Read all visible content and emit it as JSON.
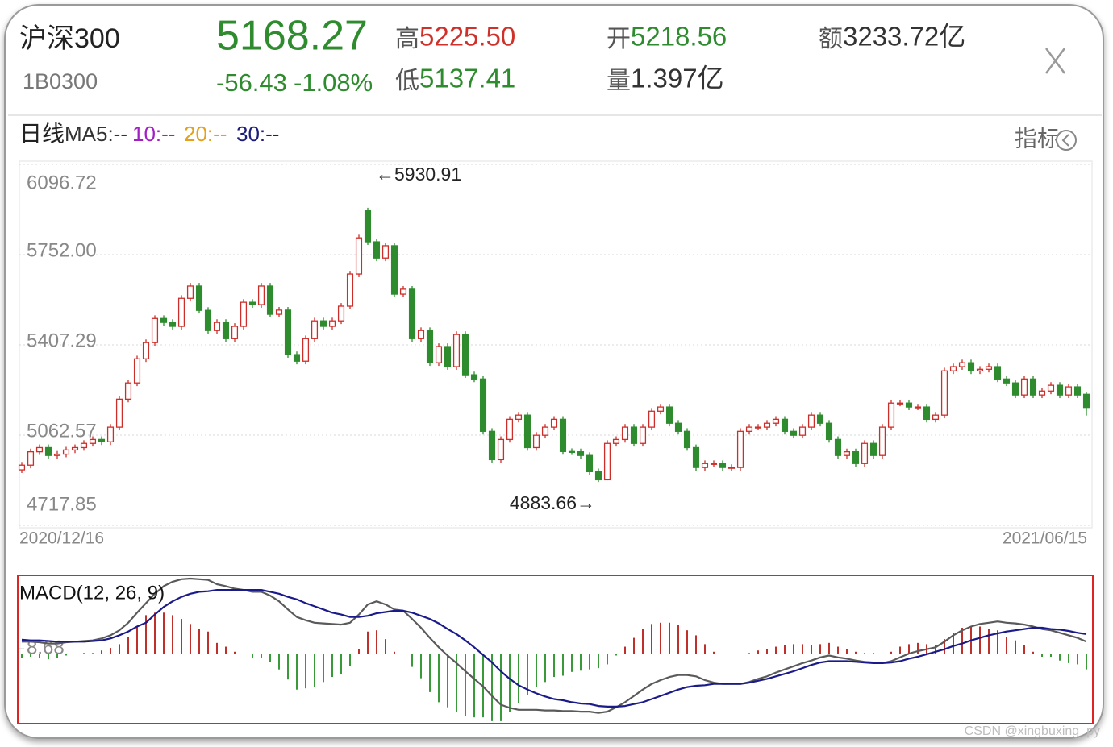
{
  "header": {
    "name": "沪深300",
    "code": "1B0300",
    "price": "5168.27",
    "change": "-56.43",
    "change_pct": "-1.08%",
    "high_label": "高",
    "high": "5225.50",
    "low_label": "低",
    "low": "5137.41",
    "open_label": "开",
    "open": "5218.56",
    "volume_label": "量",
    "volume": "1.397亿",
    "amount_label": "额",
    "amount": "3233.72亿"
  },
  "toolbar": {
    "period": "日线",
    "ma": [
      {
        "text": "MA5:--",
        "color": "#333333"
      },
      {
        "text": "10:--",
        "color": "#a21fc4"
      },
      {
        "text": "20:--",
        "color": "#e3a21a"
      },
      {
        "text": "30:--",
        "color": "#1c1c7a"
      }
    ],
    "indicator": "指标"
  },
  "watermark": "CSDN @xingbuxing_py",
  "chart_data": [
    {
      "type": "candlestick",
      "categories": [
        "2020/12/16",
        null,
        null,
        null,
        null,
        null,
        null,
        null,
        null,
        null,
        null,
        null,
        null,
        null,
        null,
        null,
        null,
        null,
        null,
        null,
        null,
        null,
        null,
        null,
        null,
        null,
        null,
        null,
        null,
        null,
        null,
        null,
        null,
        null,
        null,
        null,
        null,
        null,
        null,
        null,
        null,
        null,
        null,
        null,
        null,
        null,
        null,
        null,
        null,
        null,
        null,
        null,
        null,
        null,
        null,
        null,
        null,
        null,
        null,
        null,
        null,
        null,
        null,
        null,
        null,
        null,
        null,
        null,
        null,
        null,
        null,
        null,
        null,
        null,
        null,
        null,
        null,
        null,
        null,
        null,
        null,
        null,
        null,
        null,
        null,
        null,
        null,
        null,
        null,
        null,
        null,
        null,
        null,
        null,
        null,
        null,
        null,
        null,
        null,
        null,
        null,
        null,
        null,
        null,
        null,
        null,
        null,
        null,
        null,
        null,
        null,
        null,
        null,
        null,
        null,
        null,
        null,
        null,
        null,
        null,
        "2021/06/15"
      ],
      "open": [
        4930,
        4948,
        4999,
        5015,
        4985,
        4990,
        5006,
        5015,
        5031,
        5046,
        5037,
        5093,
        5200,
        5262,
        5354,
        5416,
        5508,
        5493,
        5478,
        5585,
        5632,
        5539,
        5462,
        5493,
        5431,
        5478,
        5570,
        5561,
        5632,
        5524,
        5540,
        5370,
        5345,
        5431,
        5499,
        5478,
        5499,
        5555,
        5678,
        5920,
        5801,
        5739,
        5786,
        5601,
        5620,
        5431,
        5462,
        5339,
        5401,
        5324,
        5447,
        5293,
        5277,
        5077,
        4969,
        5046,
        5123,
        5139,
        5015,
        5062,
        5093,
        5123,
        5000,
        4999,
        4985,
        4923,
        4892,
        5031,
        5046,
        5093,
        5031,
        5093,
        5154,
        5170,
        5108,
        5077,
        5015,
        4939,
        4954,
        4954,
        4939,
        4939,
        5077,
        5093,
        5093,
        5108,
        5123,
        5077,
        5062,
        5093,
        5139,
        5108,
        5046,
        4985,
        4999,
        4954,
        5031,
        4985,
        5093,
        5185,
        5185,
        5170,
        5170,
        5123,
        5139,
        5308,
        5324,
        5339,
        5308,
        5314,
        5324,
        5277,
        5262,
        5216,
        5277,
        5216,
        5231,
        5253,
        5216,
        5247,
        5218.56
      ],
      "high": [
        4960,
        5011,
        5027,
        5027,
        5002,
        5018,
        5027,
        5043,
        5058,
        5058,
        5105,
        5212,
        5274,
        5366,
        5428,
        5520,
        5520,
        5505,
        5597,
        5644,
        5644,
        5551,
        5505,
        5505,
        5490,
        5582,
        5582,
        5644,
        5644,
        5552,
        5552,
        5382,
        5443,
        5511,
        5511,
        5511,
        5567,
        5690,
        5828,
        5930.91,
        5813,
        5798,
        5798,
        5632,
        5632,
        5474,
        5474,
        5413,
        5413,
        5459,
        5459,
        5305,
        5289,
        5089,
        5058,
        5135,
        5151,
        5151,
        5074,
        5105,
        5135,
        5135,
        5012,
        5011,
        4997,
        4935,
        5043,
        5058,
        5105,
        5105,
        5105,
        5166,
        5182,
        5182,
        5120,
        5089,
        5027,
        4966,
        4966,
        4966,
        4951,
        5089,
        5105,
        5105,
        5120,
        5135,
        5135,
        5089,
        5105,
        5151,
        5151,
        5120,
        5058,
        5011,
        5011,
        5043,
        5043,
        5105,
        5197,
        5197,
        5197,
        5182,
        5182,
        5151,
        5320,
        5336,
        5351,
        5351,
        5326,
        5336,
        5336,
        5289,
        5274,
        5289,
        5289,
        5243,
        5265,
        5265,
        5259,
        5259,
        5225.5
      ],
      "low": [
        4918,
        4936,
        4987,
        4973,
        4973,
        4978,
        4994,
        5003,
        5019,
        5025,
        5025,
        5081,
        5188,
        5250,
        5342,
        5404,
        5481,
        5466,
        5466,
        5573,
        5527,
        5450,
        5450,
        5419,
        5419,
        5466,
        5549,
        5549,
        5512,
        5512,
        5358,
        5333,
        5333,
        5419,
        5466,
        5466,
        5487,
        5543,
        5666,
        5789,
        5727,
        5727,
        5589,
        5589,
        5419,
        5419,
        5327,
        5327,
        5312,
        5312,
        5281,
        5265,
        5065,
        4957,
        4957,
        5034,
        5111,
        5003,
        5003,
        5050,
        5081,
        4988,
        4987,
        4973,
        4911,
        4883.66,
        4890,
        5019,
        5034,
        5019,
        5019,
        5081,
        5142,
        5096,
        5065,
        5003,
        4927,
        4927,
        4942,
        4927,
        4927,
        4927,
        5065,
        5081,
        5081,
        5096,
        5065,
        5050,
        5050,
        5081,
        5096,
        5034,
        4973,
        4973,
        4942,
        4942,
        4973,
        4973,
        5081,
        5173,
        5158,
        5158,
        5111,
        5111,
        5127,
        5296,
        5312,
        5296,
        5296,
        5302,
        5265,
        5250,
        5204,
        5204,
        5204,
        5204,
        5219,
        5204,
        5204,
        5204,
        5137.41
      ],
      "close": [
        4948,
        4999,
        5015,
        4985,
        4990,
        5006,
        5015,
        5031,
        5046,
        5037,
        5093,
        5200,
        5262,
        5354,
        5416,
        5508,
        5493,
        5478,
        5585,
        5632,
        5539,
        5462,
        5493,
        5431,
        5478,
        5570,
        5561,
        5632,
        5524,
        5540,
        5370,
        5345,
        5431,
        5499,
        5478,
        5499,
        5555,
        5678,
        5816,
        5801,
        5739,
        5786,
        5601,
        5620,
        5431,
        5462,
        5339,
        5401,
        5324,
        5447,
        5293,
        5277,
        5077,
        4969,
        5046,
        5123,
        5139,
        5015,
        5062,
        5093,
        5123,
        5000,
        4999,
        4985,
        4923,
        4892,
        5031,
        5046,
        5093,
        5031,
        5093,
        5154,
        5170,
        5108,
        5077,
        5015,
        4939,
        4954,
        4954,
        4939,
        4939,
        5077,
        5093,
        5093,
        5108,
        5123,
        5077,
        5062,
        5093,
        5139,
        5108,
        5046,
        4985,
        4999,
        4954,
        5031,
        4985,
        5093,
        5185,
        5185,
        5170,
        5170,
        5123,
        5139,
        5308,
        5324,
        5339,
        5308,
        5314,
        5324,
        5277,
        5262,
        5216,
        5277,
        5216,
        5231,
        5253,
        5216,
        5247,
        5216,
        5168.27
      ],
      "up_color": "#cc2f2a",
      "down_color": "#2e8b2e",
      "ylim": [
        4717.85,
        6096.72
      ],
      "yticks": [
        6096.72,
        {
          "value": 5752,
          "label": "5752.00"
        },
        5407.29,
        5062.57,
        4717.85
      ],
      "grid": true,
      "annotations": [
        "←5930.91",
        "4883.66→"
      ]
    },
    {
      "type": "macd",
      "title": "MACD(12, 26, 9)",
      "ylim": [
        -110,
        120
      ],
      "yticks": [
        8.68
      ],
      "series": [
        {
          "color": "#5a5a5a",
          "values": [
            20,
            20,
            19,
            17,
            17,
            19,
            20,
            21,
            22,
            25,
            30,
            38,
            50,
            66,
            81,
            96,
            108,
            115,
            119,
            120,
            119,
            118,
            111,
            108,
            104,
            102,
            99,
            99,
            93,
            84,
            71,
            59,
            54,
            50,
            49,
            48,
            47,
            50,
            63,
            79,
            84,
            79,
            71,
            69,
            56,
            42,
            26,
            11,
            -2,
            -14,
            -27,
            -39,
            -51,
            -66,
            -80,
            -85,
            -88,
            -88,
            -88,
            -89,
            -89,
            -90,
            -90,
            -91,
            -91,
            -93,
            -91,
            -84,
            -76,
            -66,
            -56,
            -47,
            -41,
            -36,
            -33,
            -33,
            -35,
            -41,
            -45,
            -47,
            -47,
            -47,
            -44,
            -39,
            -35,
            -29,
            -24,
            -19,
            -14,
            -10,
            -5,
            -2,
            -5,
            -7,
            -10,
            -12,
            -13,
            -14,
            -11,
            -5,
            1,
            5,
            8,
            11,
            20,
            30,
            38,
            44,
            48,
            50,
            52,
            50,
            49,
            47,
            44,
            40,
            38,
            34,
            30,
            26,
            20
          ]
        },
        {
          "color": "#1a1a8a",
          "values": [
            23,
            22,
            22,
            21,
            20,
            20,
            20,
            20,
            21,
            22,
            25,
            30,
            36,
            44,
            50,
            63,
            75,
            84,
            91,
            96,
            99,
            100,
            102,
            102,
            102,
            102,
            102,
            102,
            99,
            96,
            91,
            87,
            81,
            76,
            71,
            66,
            63,
            59,
            59,
            61,
            65,
            67,
            69,
            69,
            66,
            61,
            56,
            49,
            40,
            32,
            22,
            11,
            -1,
            -13,
            -27,
            -39,
            -49,
            -56,
            -62,
            -67,
            -71,
            -73,
            -76,
            -78,
            -79,
            -82,
            -83,
            -83,
            -82,
            -79,
            -76,
            -71,
            -66,
            -61,
            -56,
            -52,
            -50,
            -49,
            -47,
            -47,
            -47,
            -47,
            -45,
            -42,
            -39,
            -35,
            -31,
            -27,
            -22,
            -17,
            -13,
            -11,
            -11,
            -11,
            -12,
            -13,
            -14,
            -14,
            -13,
            -11,
            -7,
            -4,
            0,
            4,
            8,
            13,
            17,
            22,
            26,
            30,
            33,
            36,
            38,
            40,
            42,
            42,
            40,
            39,
            37,
            34,
            32
          ]
        }
      ],
      "histogram": {
        "up_color": "#c0302a",
        "down_color": "#3a9a3a",
        "values": [
          -6,
          -4,
          -6,
          -8,
          -6,
          -2,
          0,
          2,
          2,
          6,
          10,
          16,
          28,
          44,
          62,
          66,
          66,
          62,
          56,
          48,
          40,
          36,
          18,
          12,
          4,
          0,
          -6,
          -6,
          -12,
          -24,
          -40,
          -56,
          -54,
          -52,
          -44,
          -36,
          -32,
          -18,
          8,
          36,
          38,
          24,
          4,
          0,
          -20,
          -38,
          -60,
          -76,
          -84,
          -92,
          -98,
          -100,
          -100,
          -106,
          -106,
          -92,
          -78,
          -64,
          -52,
          -44,
          -36,
          -34,
          -28,
          -26,
          -24,
          -22,
          -16,
          -2,
          12,
          26,
          40,
          48,
          50,
          50,
          46,
          38,
          30,
          16,
          4,
          0,
          0,
          0,
          2,
          6,
          8,
          12,
          14,
          16,
          16,
          14,
          16,
          18,
          12,
          8,
          4,
          2,
          2,
          0,
          4,
          12,
          16,
          18,
          16,
          14,
          24,
          34,
          42,
          44,
          44,
          40,
          38,
          28,
          22,
          14,
          4,
          -4,
          -4,
          -10,
          -14,
          -16,
          -24
        ]
      }
    }
  ]
}
